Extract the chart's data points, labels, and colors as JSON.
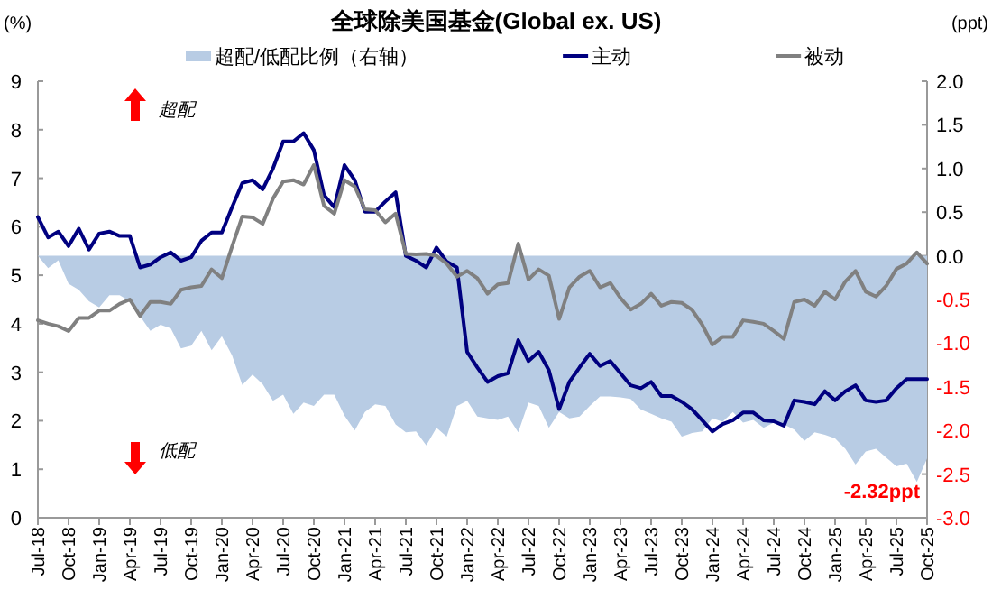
{
  "chart_data": {
    "type": "line",
    "title": "全球除美国基金(Global ex. US)",
    "ylabel": "(%)",
    "y2label": "(ppt)",
    "categories": [
      "Jul-18",
      null,
      null,
      "Oct-18",
      null,
      null,
      "Jan-19",
      null,
      null,
      "Apr-19",
      null,
      null,
      "Jul-19",
      null,
      null,
      "Oct-19",
      null,
      null,
      "Jan-20",
      null,
      null,
      "Apr-20",
      null,
      null,
      "Jul-20",
      null,
      null,
      "Oct-20",
      null,
      null,
      "Jan-21",
      null,
      null,
      "Apr-21",
      null,
      null,
      "Jul-21",
      null,
      null,
      "Oct-21",
      null,
      null,
      "Jan-22",
      null,
      null,
      "Apr-22",
      null,
      null,
      "Jul-22",
      null,
      null,
      "Oct-22",
      null,
      null,
      "Jan-23",
      null,
      null,
      "Apr-23",
      null,
      null,
      "Jul-23",
      null,
      null,
      "Oct-23",
      null,
      null,
      "Jan-24",
      null,
      null,
      "Apr-24",
      null,
      null,
      "Jul-24",
      null,
      null,
      "Oct-24",
      null,
      null,
      "Jan-25",
      null,
      null,
      "Apr-25",
      null,
      null,
      "Jul-25",
      null,
      null,
      "Oct-25"
    ],
    "series": [
      {
        "name": "超配/低配比例（右轴）",
        "type": "area",
        "axis": "y2",
        "color": "#b8cce4",
        "values": [
          0.0,
          -0.14,
          -0.05,
          -0.32,
          -0.39,
          -0.52,
          -0.59,
          -0.45,
          -0.45,
          -0.52,
          -0.69,
          -0.86,
          -0.79,
          -0.83,
          -1.06,
          -1.03,
          -0.86,
          -1.08,
          -0.92,
          -1.14,
          -1.48,
          -1.36,
          -1.47,
          -1.66,
          -1.59,
          -1.81,
          -1.68,
          -1.72,
          -1.59,
          -1.59,
          -1.83,
          -2.0,
          -1.79,
          -1.7,
          -1.72,
          -1.93,
          -2.02,
          -2.01,
          -2.17,
          -1.97,
          -2.07,
          -1.72,
          -1.66,
          -1.84,
          -1.86,
          -1.88,
          -1.84,
          -2.02,
          -1.68,
          -1.72,
          -1.97,
          -1.79,
          -1.86,
          -1.84,
          -1.72,
          -1.61,
          -1.61,
          -1.62,
          -1.64,
          -1.76,
          -1.81,
          -1.86,
          -1.9,
          -2.07,
          -2.03,
          -2.01,
          -1.86,
          -1.9,
          -1.79,
          -1.91,
          -1.88,
          -1.97,
          -1.91,
          -1.93,
          -1.99,
          -2.12,
          -2.02,
          -2.05,
          -2.09,
          -2.21,
          -2.39,
          -2.24,
          -2.21,
          -2.31,
          -2.41,
          -2.38,
          -2.59,
          -2.32
        ]
      },
      {
        "name": "主动",
        "color": "#000080",
        "values": [
          6.2,
          5.78,
          5.9,
          5.6,
          5.96,
          5.53,
          5.86,
          5.9,
          5.81,
          5.81,
          5.16,
          5.22,
          5.37,
          5.47,
          5.3,
          5.37,
          5.71,
          5.88,
          5.88,
          6.4,
          6.9,
          6.96,
          6.77,
          7.2,
          7.76,
          7.76,
          7.93,
          7.58,
          6.65,
          6.4,
          7.27,
          6.96,
          6.31,
          6.31,
          6.52,
          6.71,
          5.4,
          5.3,
          5.16,
          5.57,
          5.28,
          5.16,
          3.42,
          3.1,
          2.8,
          2.92,
          2.98,
          3.66,
          3.23,
          3.42,
          3.04,
          2.24,
          2.8,
          3.1,
          3.38,
          3.13,
          3.23,
          2.98,
          2.73,
          2.67,
          2.8,
          2.51,
          2.51,
          2.39,
          2.24,
          2.01,
          1.78,
          1.93,
          2.01,
          2.17,
          2.17,
          2.01,
          1.99,
          1.9,
          2.42,
          2.39,
          2.34,
          2.61,
          2.42,
          2.61,
          2.73,
          2.42,
          2.39,
          2.42,
          2.67,
          2.86,
          2.86,
          2.86
        ]
      },
      {
        "name": "被动",
        "color": "#808080",
        "values": [
          4.07,
          4.0,
          3.95,
          3.85,
          4.12,
          4.12,
          4.27,
          4.27,
          4.41,
          4.5,
          4.16,
          4.45,
          4.45,
          4.41,
          4.7,
          4.75,
          4.78,
          5.12,
          4.94,
          5.59,
          6.21,
          6.19,
          6.06,
          6.58,
          6.93,
          6.96,
          6.87,
          7.27,
          6.43,
          6.27,
          6.96,
          6.83,
          6.36,
          6.34,
          6.09,
          6.27,
          5.44,
          5.43,
          5.44,
          5.4,
          5.24,
          4.97,
          5.09,
          4.94,
          4.62,
          4.81,
          4.84,
          5.65,
          4.91,
          5.12,
          4.99,
          4.1,
          4.75,
          4.97,
          5.09,
          4.75,
          4.84,
          4.53,
          4.29,
          4.41,
          4.62,
          4.37,
          4.45,
          4.43,
          4.29,
          3.98,
          3.57,
          3.73,
          3.73,
          4.07,
          4.04,
          4.0,
          3.85,
          3.69,
          4.45,
          4.5,
          4.37,
          4.66,
          4.5,
          4.87,
          5.09,
          4.66,
          4.56,
          4.78,
          5.13,
          5.24,
          5.47,
          5.24
        ]
      }
    ],
    "ylim": [
      0,
      9
    ],
    "yticks": [
      0,
      1,
      2,
      3,
      4,
      5,
      6,
      7,
      8,
      9
    ],
    "y2lim": [
      -3,
      2
    ],
    "y2ticks": [
      {
        "value": -3,
        "label": "-3.0"
      },
      {
        "value": -2.5,
        "label": "-2.5"
      },
      {
        "value": -2,
        "label": "-2.0"
      },
      {
        "value": -1.5,
        "label": "-1.5"
      },
      {
        "value": -1,
        "label": "-1.0"
      },
      {
        "value": -0.5,
        "label": "-0.5"
      },
      {
        "value": 0,
        "label": "0.0"
      },
      {
        "value": 0.5,
        "label": "0.5"
      },
      {
        "value": 1,
        "label": "1.0"
      },
      {
        "value": 1.5,
        "label": "1.5"
      },
      {
        "value": 2,
        "label": "2.0"
      }
    ],
    "annotations": [
      "超配",
      "低配",
      "-2.32ppt"
    ],
    "legend": "top"
  }
}
